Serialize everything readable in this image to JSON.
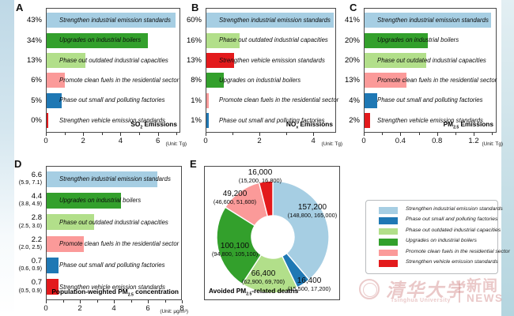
{
  "colors": {
    "light_blue": "#a6cee3",
    "dark_blue": "#1f78b4",
    "light_green": "#b2df8a",
    "dark_green": "#33a02c",
    "pink": "#fb9a99",
    "red": "#e31a1c"
  },
  "chart_data": [
    {
      "panel": "A",
      "type": "bar",
      "title": {
        "pre": "SO",
        "sub": "2",
        "post": " Emissions"
      },
      "unit": "(Unit: Tg)",
      "xlim": [
        0,
        7.2
      ],
      "ticks": {
        "values": [
          0,
          2,
          4,
          6
        ],
        "labels": [
          "0",
          "2",
          "4",
          "6"
        ]
      },
      "minor_ticks": [
        1,
        3,
        5,
        7
      ],
      "bars": [
        {
          "pct": "43%",
          "policy": "Strengthen industrial emission standards",
          "value": 7.0,
          "color": "light_blue"
        },
        {
          "pct": "34%",
          "policy": "Upgrades on industrial boilers",
          "value": 5.5,
          "color": "dark_green"
        },
        {
          "pct": "13%",
          "policy": "Phase out outdated industrial capacities",
          "value": 2.1,
          "color": "light_green"
        },
        {
          "pct": "6%",
          "policy": "Promote clean fuels in the residential sector",
          "value": 1.0,
          "color": "pink"
        },
        {
          "pct": "5%",
          "policy": "Phase out small and polluting factories",
          "value": 0.8,
          "color": "dark_blue"
        },
        {
          "pct": "0%",
          "policy": "Strengthen vehicle emission standards",
          "value": 0.05,
          "color": "red"
        }
      ]
    },
    {
      "panel": "B",
      "type": "bar",
      "title": {
        "pre": "NO",
        "sub": "x",
        "post": " Emissions"
      },
      "unit": "(Unit: Tg)",
      "xlim": [
        0,
        4.85
      ],
      "ticks": {
        "values": [
          0,
          2,
          4
        ],
        "labels": [
          "0",
          "2",
          "4"
        ]
      },
      "minor_ticks": [
        1,
        3
      ],
      "bars": [
        {
          "pct": "60%",
          "policy": "Strengthen industrial emission standards",
          "value": 4.8,
          "color": "light_blue"
        },
        {
          "pct": "16%",
          "policy": "Phase out outdated industrial capacities",
          "value": 1.25,
          "color": "light_green"
        },
        {
          "pct": "13%",
          "policy": "Strengthen vehicle emission standards",
          "value": 1.05,
          "color": "red"
        },
        {
          "pct": "8%",
          "policy": "Upgrades on industrial boilers",
          "value": 0.65,
          "color": "dark_green"
        },
        {
          "pct": "1%",
          "policy": "Promote clean fuels in the residential sector",
          "value": 0.08,
          "color": "pink"
        },
        {
          "pct": "1%",
          "policy": "Phase out small and polluting factories",
          "value": 0.08,
          "color": "dark_blue"
        }
      ]
    },
    {
      "panel": "C",
      "type": "bar",
      "title": {
        "pre": "PM",
        "sub": "2.5",
        "post": " Emissions"
      },
      "unit": "(Unit: Tg)",
      "xlim": [
        0,
        1.45
      ],
      "ticks": {
        "values": [
          0,
          0.4,
          0.8,
          1.2
        ],
        "labels": [
          "0",
          "0.4",
          "0.8",
          "1.2"
        ]
      },
      "minor_ticks": [
        0.2,
        0.6,
        1.0,
        1.4
      ],
      "bars": [
        {
          "pct": "41%",
          "policy": "Strengthen industrial emission standards",
          "value": 1.4,
          "color": "light_blue"
        },
        {
          "pct": "20%",
          "policy": "Upgrades on industrial boilers",
          "value": 0.7,
          "color": "dark_green"
        },
        {
          "pct": "20%",
          "policy": "Phase out outdated industrial capacities",
          "value": 0.68,
          "color": "light_green"
        },
        {
          "pct": "13%",
          "policy": "Promote clean fuels in the residential sector",
          "value": 0.46,
          "color": "pink"
        },
        {
          "pct": "4%",
          "policy": "Phase out small and polluting factories",
          "value": 0.14,
          "color": "dark_blue"
        },
        {
          "pct": "2%",
          "policy": "Strengthen vehicle emission standards",
          "value": 0.06,
          "color": "red"
        }
      ]
    },
    {
      "panel": "D",
      "type": "bar",
      "title": {
        "pre": "Population-weighted PM",
        "sub": "2.5",
        "post": " concentration"
      },
      "unit": "(Unit: µg/m³)",
      "xlim": [
        0,
        8
      ],
      "ticks": {
        "values": [
          0,
          2,
          4,
          6,
          8
        ],
        "labels": [
          "0",
          "2",
          "4",
          "6",
          "8"
        ]
      },
      "minor_ticks": [
        1,
        3,
        5,
        7
      ],
      "bars": [
        {
          "pct": "6.6",
          "ci": "(5.9, 7.1)",
          "policy": "Strengthen industrial emission standards",
          "value": 6.6,
          "color": "light_blue"
        },
        {
          "pct": "4.4",
          "ci": "(3.8, 4.9)",
          "policy": "Upgrades on industrial boilers",
          "value": 4.4,
          "color": "dark_green"
        },
        {
          "pct": "2.8",
          "ci": "(2.5, 3.0)",
          "policy": "Phase out outdated industrial capacities",
          "value": 2.8,
          "color": "light_green"
        },
        {
          "pct": "2.2",
          "ci": "(2.0, 2.5)",
          "policy": "Promote clean fuels in the residential sector",
          "value": 2.2,
          "color": "pink"
        },
        {
          "pct": "0.7",
          "ci": "(0.6, 0.9)",
          "policy": "Phase out small and polluting factories",
          "value": 0.7,
          "color": "dark_blue"
        },
        {
          "pct": "0.7",
          "ci": "(0.5, 0.9)",
          "policy": "Strengthen vehicle emission standards",
          "value": 0.7,
          "color": "red"
        }
      ]
    },
    {
      "panel": "E",
      "type": "donut",
      "title": {
        "pre": "Avoided PM",
        "sub": "2.5",
        "post": "-related deaths"
      },
      "segments": [
        {
          "value": 157200,
          "value_label": "157,200",
          "ci": "(148,800, 165,000)",
          "policy": "Strengthen industrial emission standards",
          "color": "light_blue"
        },
        {
          "value": 16400,
          "value_label": "16,400",
          "ci": "(15,500, 17,200)",
          "policy": "Phase out small and polluting factories",
          "color": "dark_blue"
        },
        {
          "value": 66400,
          "value_label": "66,400",
          "ci": "(62,900, 69,700)",
          "policy": "Phase out outdated industrial capacities",
          "color": "light_green"
        },
        {
          "value": 100100,
          "value_label": "100,100",
          "ci": "(94,800, 105,100)",
          "policy": "Upgrades on industrial boilers",
          "color": "dark_green"
        },
        {
          "value": 49200,
          "value_label": "49,200",
          "ci": "(46,600, 51,600)",
          "policy": "Promote clean fuels in the residential sector",
          "color": "pink"
        },
        {
          "value": 16000,
          "value_label": "16,000",
          "ci": "(15,200, 16,800)",
          "policy": "Strengthen vehicle emission standards",
          "color": "red"
        }
      ]
    }
  ],
  "legend": {
    "items": [
      {
        "color": "light_blue",
        "label": "Strengthen industrial emission standards"
      },
      {
        "color": "dark_blue",
        "label": "Phase out small and polluting factories"
      },
      {
        "color": "light_green",
        "label": "Phase out outdated industrial capacities"
      },
      {
        "color": "dark_green",
        "label": "Upgrades on industrial boilers"
      },
      {
        "color": "pink",
        "label": "Promote clean fuels in the residential sector"
      },
      {
        "color": "red",
        "label": "Strengthen vehicle emission standards"
      }
    ]
  },
  "watermark": {
    "university_cn": "清华大学",
    "university_en": "Tsinghua University",
    "news_cn": "新闻",
    "news_en": "NEWS"
  }
}
